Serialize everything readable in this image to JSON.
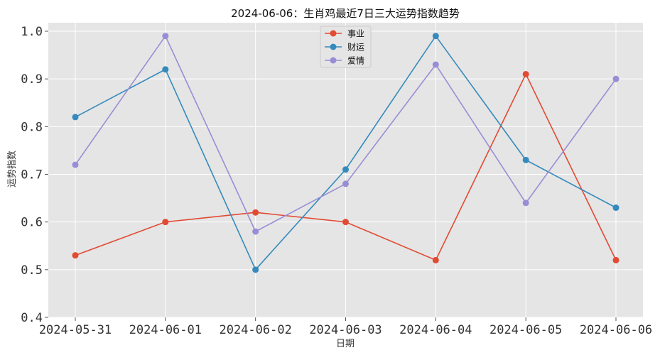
{
  "chart_data": {
    "type": "line",
    "title": "2024-06-06：生肖鸡最近7日三大运势指数趋势",
    "xlabel": "日期",
    "ylabel": "运势指数",
    "categories": [
      "2024-05-31",
      "2024-06-01",
      "2024-06-02",
      "2024-06-03",
      "2024-06-04",
      "2024-06-05",
      "2024-06-06"
    ],
    "ylim": [
      0.4,
      1.0
    ],
    "yticks": [
      0.4,
      0.5,
      0.6,
      0.7,
      0.8,
      0.9,
      1.0
    ],
    "ytick_labels": [
      "0.4",
      "0.5",
      "0.6",
      "0.7",
      "0.8",
      "0.9",
      "1.0"
    ],
    "grid": true,
    "legend_position": "top-center",
    "series": [
      {
        "name": "事业",
        "color": "#E24A33",
        "values": [
          0.53,
          0.6,
          0.62,
          0.6,
          0.52,
          0.91,
          0.52
        ]
      },
      {
        "name": "财运",
        "color": "#348ABD",
        "values": [
          0.82,
          0.92,
          0.5,
          0.71,
          0.99,
          0.73,
          0.63
        ]
      },
      {
        "name": "爱情",
        "color": "#988ED5",
        "values": [
          0.72,
          0.99,
          0.58,
          0.68,
          0.93,
          0.64,
          0.9
        ]
      }
    ]
  }
}
